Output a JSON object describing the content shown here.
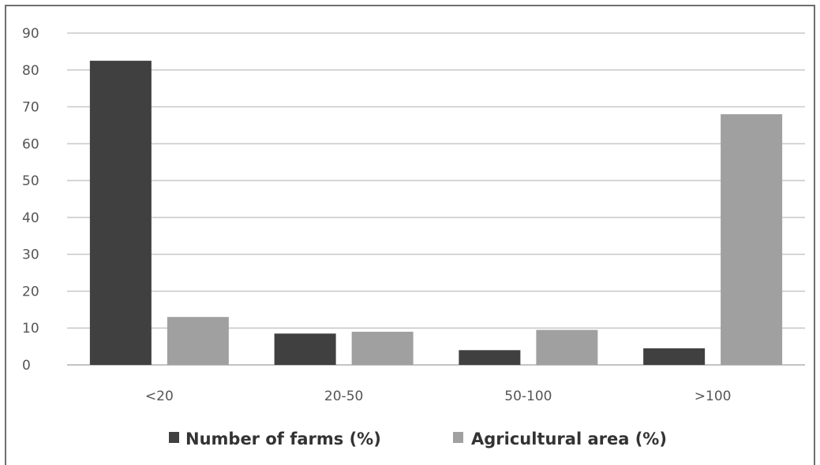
{
  "chart_data": {
    "type": "bar",
    "categories": [
      "<20",
      "20-50",
      "50-100",
      ">100"
    ],
    "series": [
      {
        "name": "Number of farms (%)",
        "values": [
          82.5,
          8.5,
          4,
          4.5
        ],
        "color": "#404040"
      },
      {
        "name": "Agricultural area (%)",
        "values": [
          13,
          9,
          9.5,
          68
        ],
        "color": "#a0a0a0"
      }
    ],
    "yticks": [
      "0",
      "10",
      "20",
      "30",
      "40",
      "50",
      "60",
      "70",
      "80",
      "90"
    ],
    "ylim": [
      0,
      90
    ],
    "grid": true,
    "legend_position": "bottom",
    "title": "",
    "xlabel": "",
    "ylabel": ""
  }
}
